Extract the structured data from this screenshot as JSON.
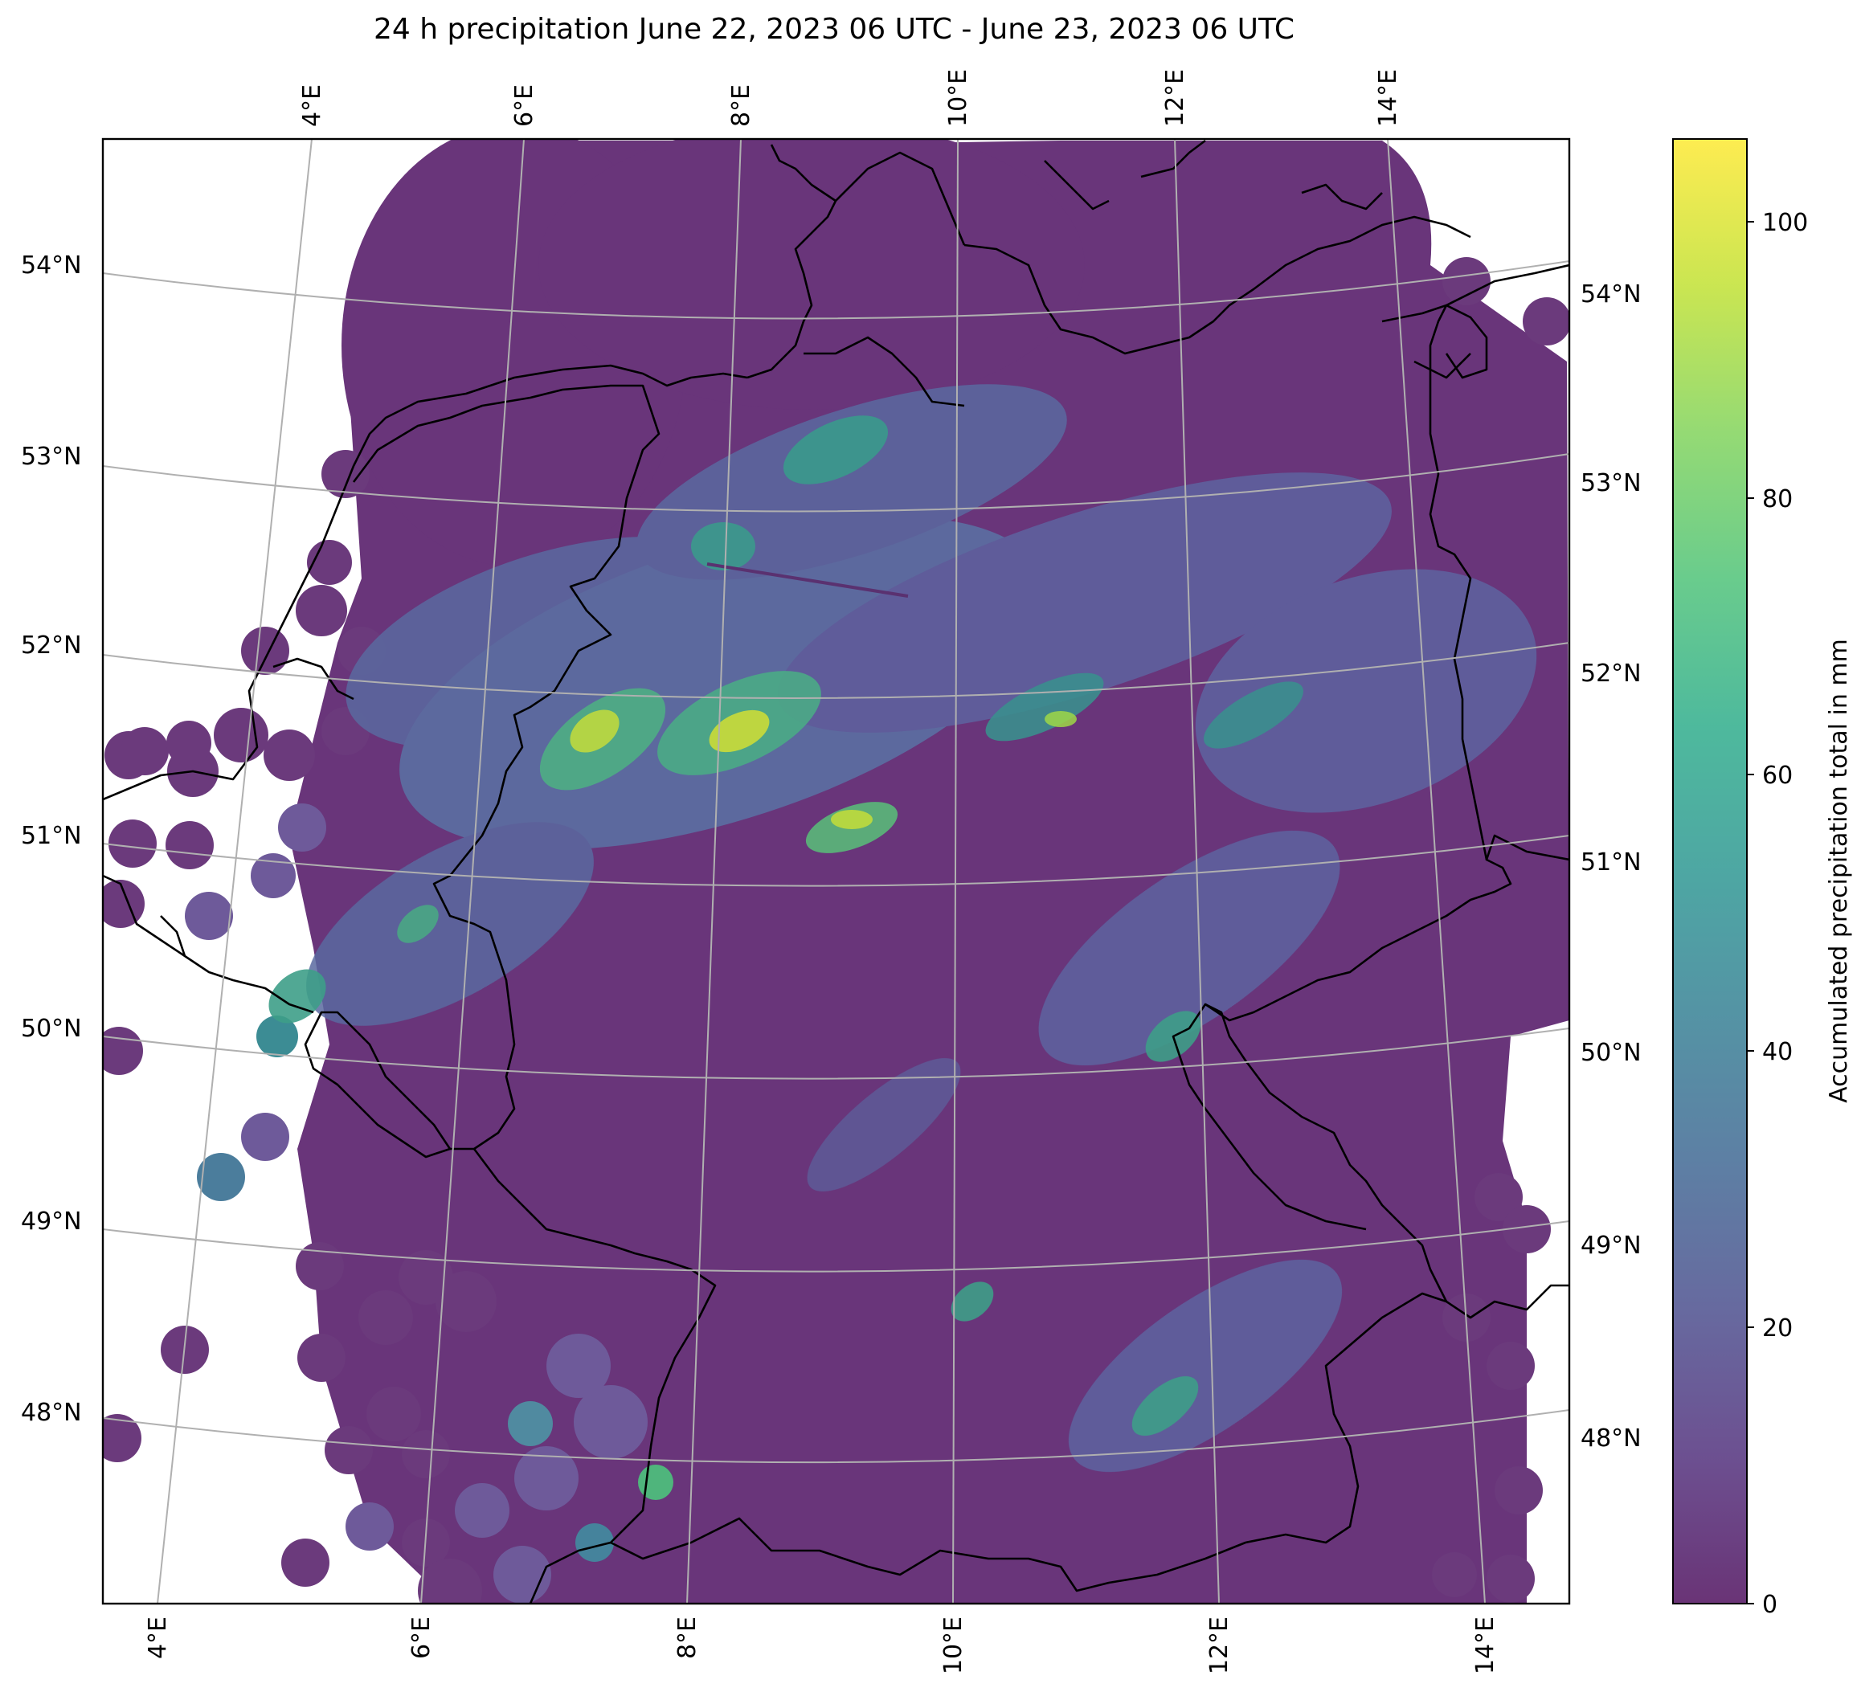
{
  "title": "24 h precipitation June 22, 2023 06 UTC - June 23, 2023 06 UTC",
  "colorbar": {
    "label": "Accumulated precipitation total in mm",
    "ticks": [
      "0",
      "20",
      "40",
      "60",
      "80",
      "100"
    ],
    "range_mm": [
      0,
      106
    ],
    "colormap": "viridis",
    "alpha": 0.8
  },
  "graticule": {
    "lon_top": [
      "4°E",
      "6°E",
      "8°E",
      "10°E",
      "12°E",
      "14°E"
    ],
    "lon_bottom": [
      "4°E",
      "6°E",
      "8°E",
      "10°E",
      "12°E",
      "14°E"
    ],
    "lat_left": [
      "54°N",
      "53°N",
      "52°N",
      "51°N",
      "50°N",
      "49°N",
      "48°N"
    ],
    "lat_right": [
      "54°N",
      "53°N",
      "52°N",
      "51°N",
      "50°N",
      "49°N",
      "48°N"
    ]
  },
  "colors": {
    "low": "#440154",
    "mid": "#21918c",
    "high": "#fde725",
    "grid": "#b0b0b0",
    "coastline": "#000000"
  }
}
